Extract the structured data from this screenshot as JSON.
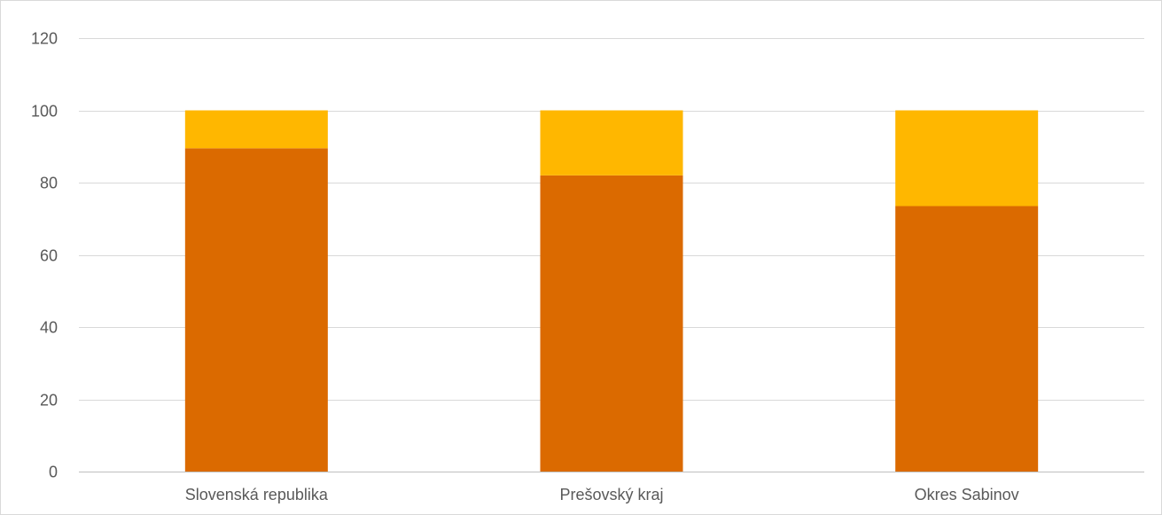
{
  "chart_data": {
    "type": "bar",
    "stacked": true,
    "categories": [
      "Slovenská republika",
      "Prešovský kraj",
      "Okres Sabinov"
    ],
    "series": [
      {
        "values": [
          89.5,
          82.0,
          73.5
        ]
      },
      {
        "values": [
          10.5,
          18.0,
          26.5
        ]
      }
    ],
    "ylim": [
      0,
      120
    ],
    "yticks": [
      0,
      20,
      40,
      60,
      80,
      100,
      120
    ],
    "grid": true,
    "colors": [
      "#db6a00",
      "#ffb700"
    ]
  }
}
